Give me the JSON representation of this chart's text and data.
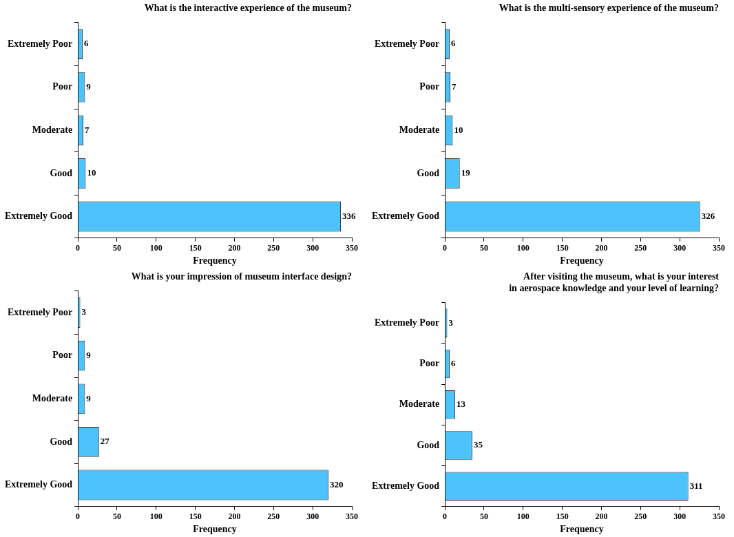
{
  "chart_data": [
    {
      "type": "bar",
      "orientation": "horizontal",
      "title": "What is the interactive experience of the museum?",
      "xlabel": "Frequency",
      "categories": [
        "Extremely Poor",
        "Poor",
        "Moderate",
        "Good",
        "Extremely Good"
      ],
      "values": [
        6,
        9,
        7,
        10,
        336
      ],
      "color": "#4dc3fb",
      "xlim": [
        0,
        350
      ],
      "xticks": [
        0,
        50,
        100,
        150,
        200,
        250,
        300,
        350
      ],
      "data_labels": true
    },
    {
      "type": "bar",
      "orientation": "horizontal",
      "title": "What is the multi-sensory experience of the museum?",
      "xlabel": "Frequency",
      "categories": [
        "Extremely Poor",
        "Poor",
        "Moderate",
        "Good",
        "Extremely Good"
      ],
      "values": [
        6,
        7,
        10,
        19,
        326
      ],
      "color": "#4dc3fb",
      "xlim": [
        0,
        350
      ],
      "xticks": [
        0,
        50,
        100,
        150,
        200,
        250,
        300,
        350
      ],
      "data_labels": true
    },
    {
      "type": "bar",
      "orientation": "horizontal",
      "title": "What is your impression of museum interface design?",
      "xlabel": "Frequency",
      "categories": [
        "Extremely Poor",
        "Poor",
        "Moderate",
        "Good",
        "Extremely Good"
      ],
      "values": [
        3,
        9,
        9,
        27,
        320
      ],
      "color": "#4dc3fb",
      "xlim": [
        0,
        350
      ],
      "xticks": [
        0,
        50,
        100,
        150,
        200,
        250,
        300,
        350
      ],
      "data_labels": true
    },
    {
      "type": "bar",
      "orientation": "horizontal",
      "title": "After visiting the museum, what is your interest\nin aerospace knowledge and your level of learning?",
      "xlabel": "Frequency",
      "categories": [
        "Extremely Poor",
        "Poor",
        "Moderate",
        "Good",
        "Extremely Good"
      ],
      "values": [
        3,
        6,
        13,
        35,
        311
      ],
      "color": "#4dc3fb",
      "xlim": [
        0,
        350
      ],
      "xticks": [
        0,
        50,
        100,
        150,
        200,
        250,
        300,
        350
      ],
      "data_labels": true
    }
  ]
}
